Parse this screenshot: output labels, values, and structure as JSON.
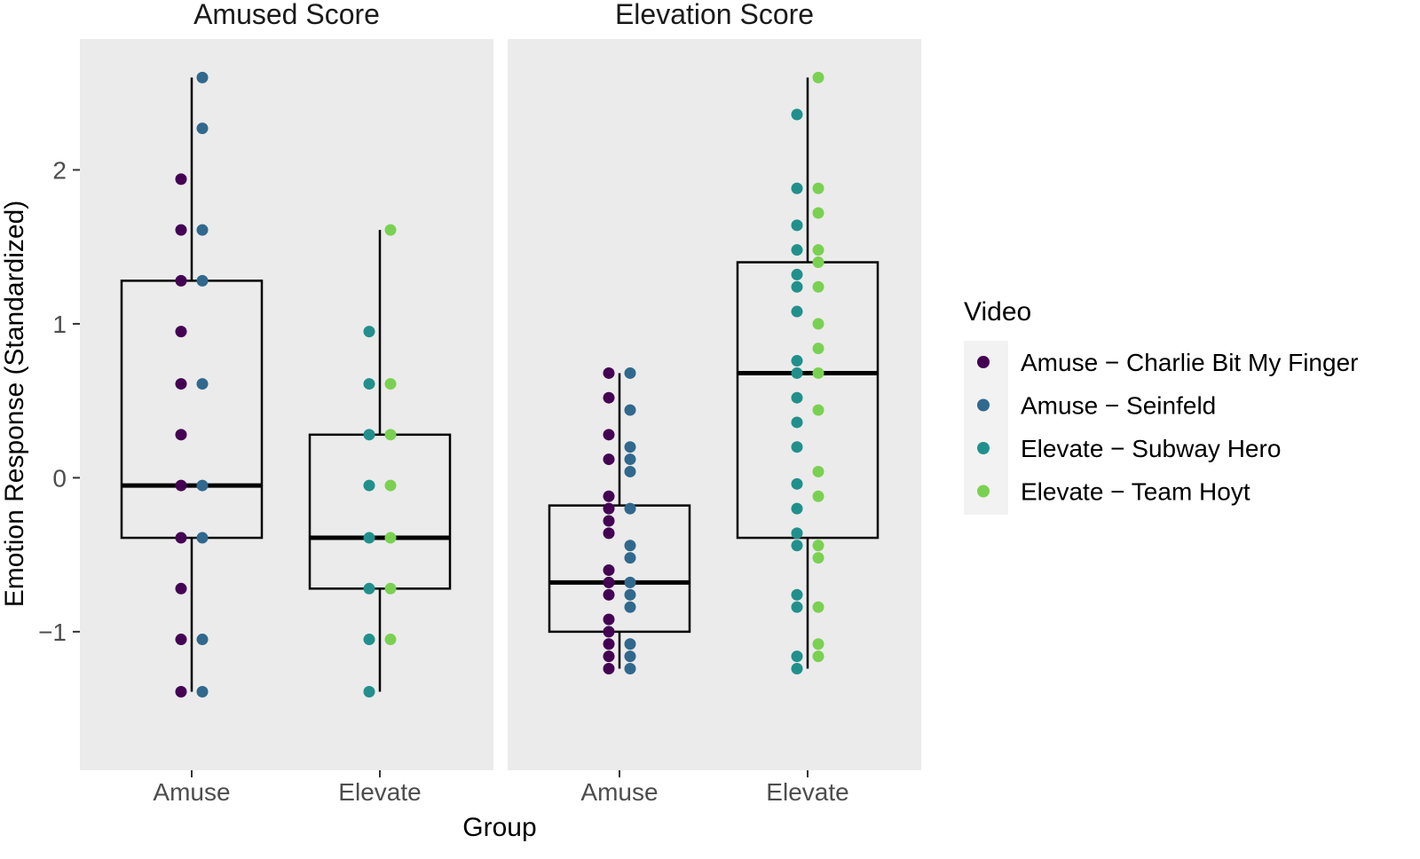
{
  "chart_data": {
    "type": "box",
    "panels": [
      {
        "title": "Amused Score",
        "groups": [
          {
            "category": "Amuse",
            "box": {
              "lower_whisker": -1.39,
              "q1": -0.39,
              "median": -0.05,
              "q3": 1.28,
              "upper_whisker": 2.6
            },
            "points": [
              {
                "video": 0,
                "y": 1.94
              },
              {
                "video": 0,
                "y": 1.61
              },
              {
                "video": 0,
                "y": 1.28
              },
              {
                "video": 0,
                "y": 0.95
              },
              {
                "video": 0,
                "y": 0.61
              },
              {
                "video": 0,
                "y": 0.28
              },
              {
                "video": 0,
                "y": -0.05
              },
              {
                "video": 0,
                "y": -0.39
              },
              {
                "video": 0,
                "y": -0.72
              },
              {
                "video": 0,
                "y": -1.05
              },
              {
                "video": 0,
                "y": -1.39
              },
              {
                "video": 1,
                "y": 2.6
              },
              {
                "video": 1,
                "y": 2.27
              },
              {
                "video": 1,
                "y": 1.61
              },
              {
                "video": 1,
                "y": 1.28
              },
              {
                "video": 1,
                "y": 0.61
              },
              {
                "video": 1,
                "y": -0.05
              },
              {
                "video": 1,
                "y": -0.39
              },
              {
                "video": 1,
                "y": -1.05
              },
              {
                "video": 1,
                "y": -1.39
              }
            ]
          },
          {
            "category": "Elevate",
            "box": {
              "lower_whisker": -1.39,
              "q1": -0.72,
              "median": -0.39,
              "q3": 0.28,
              "upper_whisker": 1.61
            },
            "points": [
              {
                "video": 2,
                "y": 0.95
              },
              {
                "video": 2,
                "y": 0.61
              },
              {
                "video": 2,
                "y": 0.28
              },
              {
                "video": 2,
                "y": -0.05
              },
              {
                "video": 2,
                "y": -0.39
              },
              {
                "video": 2,
                "y": -0.72
              },
              {
                "video": 2,
                "y": -1.05
              },
              {
                "video": 2,
                "y": -1.39
              },
              {
                "video": 3,
                "y": 1.61
              },
              {
                "video": 3,
                "y": 0.61
              },
              {
                "video": 3,
                "y": 0.28
              },
              {
                "video": 3,
                "y": -0.05
              },
              {
                "video": 3,
                "y": -0.39
              },
              {
                "video": 3,
                "y": -0.72
              },
              {
                "video": 3,
                "y": -1.05
              }
            ]
          }
        ]
      },
      {
        "title": "Elevation Score",
        "groups": [
          {
            "category": "Amuse",
            "box": {
              "lower_whisker": -1.24,
              "q1": -1.0,
              "median": -0.68,
              "q3": -0.18,
              "upper_whisker": 0.68
            },
            "points": [
              {
                "video": 0,
                "y": 0.68
              },
              {
                "video": 0,
                "y": 0.52
              },
              {
                "video": 0,
                "y": 0.28
              },
              {
                "video": 0,
                "y": 0.12
              },
              {
                "video": 0,
                "y": -0.12
              },
              {
                "video": 0,
                "y": -0.2
              },
              {
                "video": 0,
                "y": -0.28
              },
              {
                "video": 0,
                "y": -0.36
              },
              {
                "video": 0,
                "y": -0.6
              },
              {
                "video": 0,
                "y": -0.68
              },
              {
                "video": 0,
                "y": -0.76
              },
              {
                "video": 0,
                "y": -0.92
              },
              {
                "video": 0,
                "y": -1.0
              },
              {
                "video": 0,
                "y": -1.08
              },
              {
                "video": 0,
                "y": -1.16
              },
              {
                "video": 0,
                "y": -1.24
              },
              {
                "video": 1,
                "y": 0.68
              },
              {
                "video": 1,
                "y": 0.44
              },
              {
                "video": 1,
                "y": 0.2
              },
              {
                "video": 1,
                "y": 0.12
              },
              {
                "video": 1,
                "y": 0.04
              },
              {
                "video": 1,
                "y": -0.2
              },
              {
                "video": 1,
                "y": -0.44
              },
              {
                "video": 1,
                "y": -0.52
              },
              {
                "video": 1,
                "y": -0.68
              },
              {
                "video": 1,
                "y": -0.76
              },
              {
                "video": 1,
                "y": -0.84
              },
              {
                "video": 1,
                "y": -1.08
              },
              {
                "video": 1,
                "y": -1.16
              },
              {
                "video": 1,
                "y": -1.24
              }
            ]
          },
          {
            "category": "Elevate",
            "box": {
              "lower_whisker": -1.24,
              "q1": -0.39,
              "median": 0.68,
              "q3": 1.4,
              "upper_whisker": 2.6
            },
            "points": [
              {
                "video": 2,
                "y": 2.36
              },
              {
                "video": 2,
                "y": 1.88
              },
              {
                "video": 2,
                "y": 1.64
              },
              {
                "video": 2,
                "y": 1.48
              },
              {
                "video": 2,
                "y": 1.32
              },
              {
                "video": 2,
                "y": 1.24
              },
              {
                "video": 2,
                "y": 1.08
              },
              {
                "video": 2,
                "y": 0.76
              },
              {
                "video": 2,
                "y": 0.68
              },
              {
                "video": 2,
                "y": 0.52
              },
              {
                "video": 2,
                "y": 0.36
              },
              {
                "video": 2,
                "y": 0.2
              },
              {
                "video": 2,
                "y": -0.04
              },
              {
                "video": 2,
                "y": -0.2
              },
              {
                "video": 2,
                "y": -0.36
              },
              {
                "video": 2,
                "y": -0.44
              },
              {
                "video": 2,
                "y": -0.76
              },
              {
                "video": 2,
                "y": -0.84
              },
              {
                "video": 2,
                "y": -1.16
              },
              {
                "video": 2,
                "y": -1.24
              },
              {
                "video": 3,
                "y": 2.6
              },
              {
                "video": 3,
                "y": 1.88
              },
              {
                "video": 3,
                "y": 1.72
              },
              {
                "video": 3,
                "y": 1.48
              },
              {
                "video": 3,
                "y": 1.4
              },
              {
                "video": 3,
                "y": 1.24
              },
              {
                "video": 3,
                "y": 1.0
              },
              {
                "video": 3,
                "y": 0.84
              },
              {
                "video": 3,
                "y": 0.68
              },
              {
                "video": 3,
                "y": 0.44
              },
              {
                "video": 3,
                "y": 0.04
              },
              {
                "video": 3,
                "y": -0.12
              },
              {
                "video": 3,
                "y": -0.44
              },
              {
                "video": 3,
                "y": -0.52
              },
              {
                "video": 3,
                "y": -0.84
              },
              {
                "video": 3,
                "y": -1.08
              },
              {
                "video": 3,
                "y": -1.16
              }
            ]
          }
        ]
      }
    ],
    "categories": [
      "Amuse",
      "Elevate"
    ],
    "ylim": [
      -1.9,
      2.85
    ],
    "yticks": [
      -1,
      0,
      1,
      2
    ],
    "xlabel": "Group",
    "ylabel": "Emotion Response (Standardized)",
    "legend": {
      "title": "Video",
      "position": "right",
      "entries": [
        {
          "label": "Amuse − Charlie Bit My Finger",
          "color": "#440154"
        },
        {
          "label": "Amuse − Seinfeld",
          "color": "#31688E"
        },
        {
          "label": "Elevate − Subway Hero",
          "color": "#21908C"
        },
        {
          "label": "Elevate − Team Hoyt",
          "color": "#7AD151"
        }
      ]
    },
    "panel_background": "#EBEBEB",
    "grid": false
  }
}
